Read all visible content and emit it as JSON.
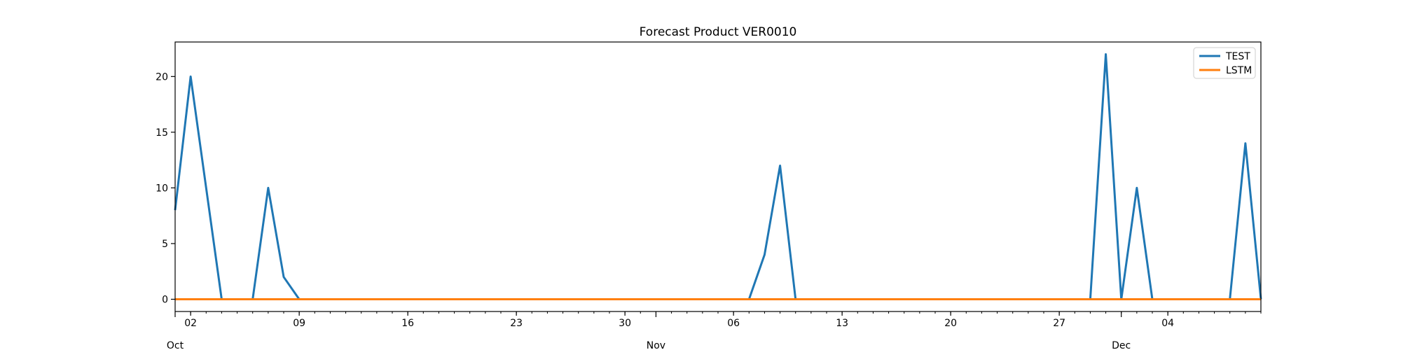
{
  "chart_data": {
    "type": "line",
    "title": "Forecast Product VER0010",
    "xlabel": "",
    "ylabel": "",
    "x_range": [
      "2023-10-01",
      "2023-12-10"
    ],
    "ylim": [
      -1.1,
      23.1
    ],
    "y_ticks": [
      0,
      5,
      10,
      15,
      20
    ],
    "x_major_ticks": [
      {
        "date": "2023-10-02",
        "label": "02"
      },
      {
        "date": "2023-10-09",
        "label": "09"
      },
      {
        "date": "2023-10-16",
        "label": "16"
      },
      {
        "date": "2023-10-23",
        "label": "23"
      },
      {
        "date": "2023-10-30",
        "label": "30"
      },
      {
        "date": "2023-11-06",
        "label": "06"
      },
      {
        "date": "2023-11-13",
        "label": "13"
      },
      {
        "date": "2023-11-20",
        "label": "20"
      },
      {
        "date": "2023-11-27",
        "label": "27"
      },
      {
        "date": "2023-12-04",
        "label": "04"
      }
    ],
    "x_month_labels": [
      {
        "date": "2023-10-01",
        "label": "Oct"
      },
      {
        "date": "2023-11-01",
        "label": "Nov"
      },
      {
        "date": "2023-12-01",
        "label": "Dec"
      }
    ],
    "legend_position": "top-right",
    "grid": false,
    "series": [
      {
        "name": "TEST",
        "color": "#1f77b4",
        "points": [
          [
            "2023-10-01",
            8
          ],
          [
            "2023-10-02",
            20
          ],
          [
            "2023-10-03",
            10
          ],
          [
            "2023-10-04",
            0
          ],
          [
            "2023-10-05",
            0
          ],
          [
            "2023-10-06",
            0
          ],
          [
            "2023-10-07",
            10
          ],
          [
            "2023-10-08",
            2
          ],
          [
            "2023-10-09",
            0
          ],
          [
            "2023-10-10",
            0
          ],
          [
            "2023-10-11",
            0
          ],
          [
            "2023-10-12",
            0
          ],
          [
            "2023-10-13",
            0
          ],
          [
            "2023-10-14",
            0
          ],
          [
            "2023-10-15",
            0
          ],
          [
            "2023-10-16",
            0
          ],
          [
            "2023-10-17",
            0
          ],
          [
            "2023-10-18",
            0
          ],
          [
            "2023-10-19",
            0
          ],
          [
            "2023-10-20",
            0
          ],
          [
            "2023-10-21",
            0
          ],
          [
            "2023-10-22",
            0
          ],
          [
            "2023-10-23",
            0
          ],
          [
            "2023-10-24",
            0
          ],
          [
            "2023-10-25",
            0
          ],
          [
            "2023-10-26",
            0
          ],
          [
            "2023-10-27",
            0
          ],
          [
            "2023-10-28",
            0
          ],
          [
            "2023-10-29",
            0
          ],
          [
            "2023-10-30",
            0
          ],
          [
            "2023-10-31",
            0
          ],
          [
            "2023-11-01",
            0
          ],
          [
            "2023-11-02",
            0
          ],
          [
            "2023-11-03",
            0
          ],
          [
            "2023-11-04",
            0
          ],
          [
            "2023-11-05",
            0
          ],
          [
            "2023-11-06",
            0
          ],
          [
            "2023-11-07",
            0
          ],
          [
            "2023-11-08",
            4
          ],
          [
            "2023-11-09",
            12
          ],
          [
            "2023-11-10",
            0
          ],
          [
            "2023-11-11",
            0
          ],
          [
            "2023-11-12",
            0
          ],
          [
            "2023-11-13",
            0
          ],
          [
            "2023-11-14",
            0
          ],
          [
            "2023-11-15",
            0
          ],
          [
            "2023-11-16",
            0
          ],
          [
            "2023-11-17",
            0
          ],
          [
            "2023-11-18",
            0
          ],
          [
            "2023-11-19",
            0
          ],
          [
            "2023-11-20",
            0
          ],
          [
            "2023-11-21",
            0
          ],
          [
            "2023-11-22",
            0
          ],
          [
            "2023-11-23",
            0
          ],
          [
            "2023-11-24",
            0
          ],
          [
            "2023-11-25",
            0
          ],
          [
            "2023-11-26",
            0
          ],
          [
            "2023-11-27",
            0
          ],
          [
            "2023-11-28",
            0
          ],
          [
            "2023-11-29",
            0
          ],
          [
            "2023-11-30",
            22
          ],
          [
            "2023-12-01",
            0
          ],
          [
            "2023-12-02",
            10
          ],
          [
            "2023-12-03",
            0
          ],
          [
            "2023-12-04",
            0
          ],
          [
            "2023-12-05",
            0
          ],
          [
            "2023-12-06",
            0
          ],
          [
            "2023-12-07",
            0
          ],
          [
            "2023-12-08",
            0
          ],
          [
            "2023-12-09",
            14
          ],
          [
            "2023-12-10",
            0
          ]
        ]
      },
      {
        "name": "LSTM",
        "color": "#ff7f0e",
        "points": [
          [
            "2023-10-01",
            0
          ],
          [
            "2023-12-10",
            0
          ]
        ]
      }
    ]
  }
}
